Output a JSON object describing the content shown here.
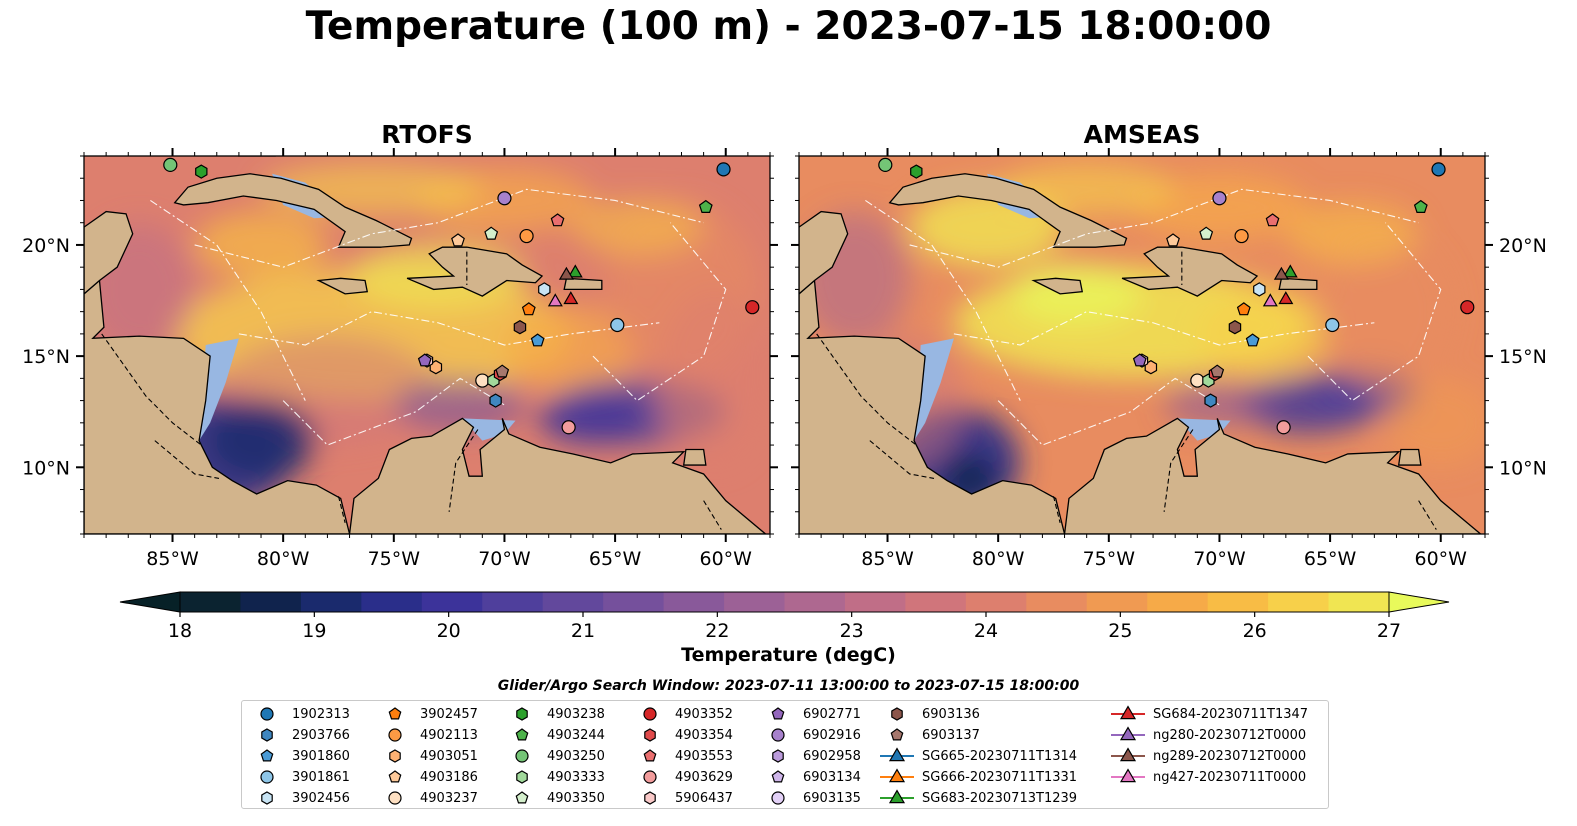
{
  "figure": {
    "title": "Temperature (100 m) - 2023-07-15 18:00:00"
  },
  "chart_data": [
    {
      "type": "heatmap",
      "title": "RTOFS",
      "variable": "Temperature (100 m)",
      "xlim": [
        -89,
        -58
      ],
      "ylim": [
        7,
        24
      ],
      "xticks": [
        -85,
        -80,
        -75,
        -70,
        -65,
        -60
      ],
      "xtick_labels": [
        "85°W",
        "80°W",
        "75°W",
        "70°W",
        "65°W",
        "60°W"
      ],
      "yticks": [
        10,
        15,
        20
      ],
      "ytick_labels": [
        "10°N",
        "15°N",
        "20°N"
      ],
      "ytick_side": "left",
      "land_color": "#d2b48c",
      "shallow_water_color": "#98b7e2"
    },
    {
      "type": "heatmap",
      "title": "AMSEAS",
      "variable": "Temperature (100 m)",
      "xlim": [
        -89,
        -58
      ],
      "ylim": [
        7,
        24
      ],
      "xticks": [
        -85,
        -80,
        -75,
        -70,
        -65,
        -60
      ],
      "xtick_labels": [
        "85°W",
        "80°W",
        "75°W",
        "70°W",
        "65°W",
        "60°W"
      ],
      "yticks": [
        10,
        15,
        20
      ],
      "ytick_labels": [
        "10°N",
        "15°N",
        "20°N"
      ],
      "ytick_side": "right",
      "land_color": "#d2b48c",
      "shallow_water_color": "#98b7e2"
    }
  ],
  "colorbar": {
    "label": "Temperature (degC)",
    "min": 18,
    "max": 27,
    "step": 0.5,
    "extend": "both",
    "ticks": [
      18,
      19,
      20,
      21,
      22,
      23,
      24,
      25,
      26,
      27
    ],
    "colors": [
      "#0b2330",
      "#10234d",
      "#1a2a6d",
      "#2a2e8a",
      "#3c339a",
      "#4f3f9c",
      "#62489c",
      "#75509c",
      "#89599a",
      "#9c6196",
      "#ae6890",
      "#c06e87",
      "#d0757b",
      "#dd7f6e",
      "#e88c60",
      "#f09a52",
      "#f6aa48",
      "#f8bc45",
      "#f7d04a",
      "#f0e552"
    ],
    "under_color": "#072127",
    "over_color": "#e8fa5b"
  },
  "legend": {
    "title": "Glider/Argo Search Window: 2023-07-11 13:00:00 to 2023-07-15 18:00:00",
    "entries": [
      {
        "label": "1902313",
        "marker": "circle",
        "color": "#1f77b4"
      },
      {
        "label": "2903766",
        "marker": "hexagon",
        "color": "#3f87c0"
      },
      {
        "label": "3901860",
        "marker": "pentagon",
        "color": "#4a9bd6"
      },
      {
        "label": "3901861",
        "marker": "circle",
        "color": "#8ec6e8"
      },
      {
        "label": "3902456",
        "marker": "hexagon",
        "color": "#c8e4f4"
      },
      {
        "label": "3902457",
        "marker": "pentagon",
        "color": "#ff7f0e"
      },
      {
        "label": "4902113",
        "marker": "circle",
        "color": "#fd9a44"
      },
      {
        "label": "4903051",
        "marker": "hexagon",
        "color": "#fdb173"
      },
      {
        "label": "4903186",
        "marker": "pentagon",
        "color": "#fdc99a"
      },
      {
        "label": "4903237",
        "marker": "circle",
        "color": "#fee0c2"
      },
      {
        "label": "4903238",
        "marker": "hexagon",
        "color": "#2ca02c"
      },
      {
        "label": "4903244",
        "marker": "pentagon",
        "color": "#4db34a"
      },
      {
        "label": "4903250",
        "marker": "circle",
        "color": "#74c476"
      },
      {
        "label": "4903333",
        "marker": "hexagon",
        "color": "#a1d99b"
      },
      {
        "label": "4903350",
        "marker": "pentagon",
        "color": "#d4efcc"
      },
      {
        "label": "4903352",
        "marker": "circle",
        "color": "#d62728"
      },
      {
        "label": "4903354",
        "marker": "hexagon",
        "color": "#e04a4b"
      },
      {
        "label": "4903553",
        "marker": "pentagon",
        "color": "#ea6f6f"
      },
      {
        "label": "4903629",
        "marker": "circle",
        "color": "#f29c9c"
      },
      {
        "label": "5906437",
        "marker": "hexagon",
        "color": "#f9c9c8"
      },
      {
        "label": "6902771",
        "marker": "pentagon",
        "color": "#9467bd"
      },
      {
        "label": "6902916",
        "marker": "circle",
        "color": "#a781cc"
      },
      {
        "label": "6902958",
        "marker": "hexagon",
        "color": "#bb9bdb"
      },
      {
        "label": "6903134",
        "marker": "pentagon",
        "color": "#cfb6ea"
      },
      {
        "label": "6903135",
        "marker": "circle",
        "color": "#e3d1f7"
      },
      {
        "label": "6903136",
        "marker": "hexagon",
        "color": "#8c564b"
      },
      {
        "label": "6903137",
        "marker": "pentagon",
        "color": "#a6776d"
      },
      {
        "label": "SG665-20230711T1314",
        "marker": "triangle-line",
        "color": "#1f77b4"
      },
      {
        "label": "SG666-20230711T1331",
        "marker": "triangle-line",
        "color": "#ff7f0e"
      },
      {
        "label": "SG683-20230713T1239",
        "marker": "triangle-line",
        "color": "#2ca02c"
      },
      {
        "label": "SG684-20230711T1347",
        "marker": "triangle-line",
        "color": "#d62728"
      },
      {
        "label": "ng280-20230712T0000",
        "marker": "triangle-line",
        "color": "#9467bd"
      },
      {
        "label": "ng289-20230712T0000",
        "marker": "triangle-line",
        "color": "#8c564b"
      },
      {
        "label": "ng427-20230711T0000",
        "marker": "triangle-line",
        "color": "#e377c2"
      }
    ]
  },
  "observations": [
    {
      "id": "1902313",
      "lon": -60.1,
      "lat": 23.4
    },
    {
      "id": "2903766",
      "lon": -70.4,
      "lat": 13.0
    },
    {
      "id": "3901860",
      "lon": -68.5,
      "lat": 15.7
    },
    {
      "id": "3901861",
      "lon": -64.9,
      "lat": 16.4
    },
    {
      "id": "3902456",
      "lon": -68.2,
      "lat": 18.0
    },
    {
      "id": "3902457",
      "lon": -68.9,
      "lat": 17.1
    },
    {
      "id": "4902113",
      "lon": -69.0,
      "lat": 20.4
    },
    {
      "id": "4903051",
      "lon": -73.1,
      "lat": 14.5
    },
    {
      "id": "4903186",
      "lon": -72.1,
      "lat": 20.2
    },
    {
      "id": "4903237",
      "lon": -71.0,
      "lat": 13.9
    },
    {
      "id": "4903238",
      "lon": -83.7,
      "lat": 23.3
    },
    {
      "id": "4903244",
      "lon": -60.9,
      "lat": 21.7
    },
    {
      "id": "4903250",
      "lon": -85.1,
      "lat": 23.6
    },
    {
      "id": "4903333",
      "lon": -70.5,
      "lat": 13.9
    },
    {
      "id": "4903350",
      "lon": -70.6,
      "lat": 20.5
    },
    {
      "id": "4903352",
      "lon": -58.8,
      "lat": 17.2
    },
    {
      "id": "4903354",
      "lon": -70.2,
      "lat": 14.2
    },
    {
      "id": "4903553",
      "lon": -67.6,
      "lat": 21.1
    },
    {
      "id": "4903629",
      "lon": -67.1,
      "lat": 11.8
    },
    {
      "id": "5906437",
      "lon": -73.5,
      "lat": 14.8
    },
    {
      "id": "6902771",
      "lon": -73.6,
      "lat": 14.8
    },
    {
      "id": "6902916",
      "lon": -70.0,
      "lat": 22.1
    },
    {
      "id": "6903136",
      "lon": -69.3,
      "lat": 16.3
    },
    {
      "id": "6903137",
      "lon": -70.1,
      "lat": 14.3
    },
    {
      "id": "SG683-20230713T1239",
      "lon": -66.8,
      "lat": 18.8
    },
    {
      "id": "SG684-20230711T1347",
      "lon": -67.0,
      "lat": 17.6
    },
    {
      "id": "ng289-20230712T0000",
      "lon": -67.2,
      "lat": 18.7
    },
    {
      "id": "ng427-20230711T0000",
      "lon": -67.7,
      "lat": 17.5
    }
  ]
}
